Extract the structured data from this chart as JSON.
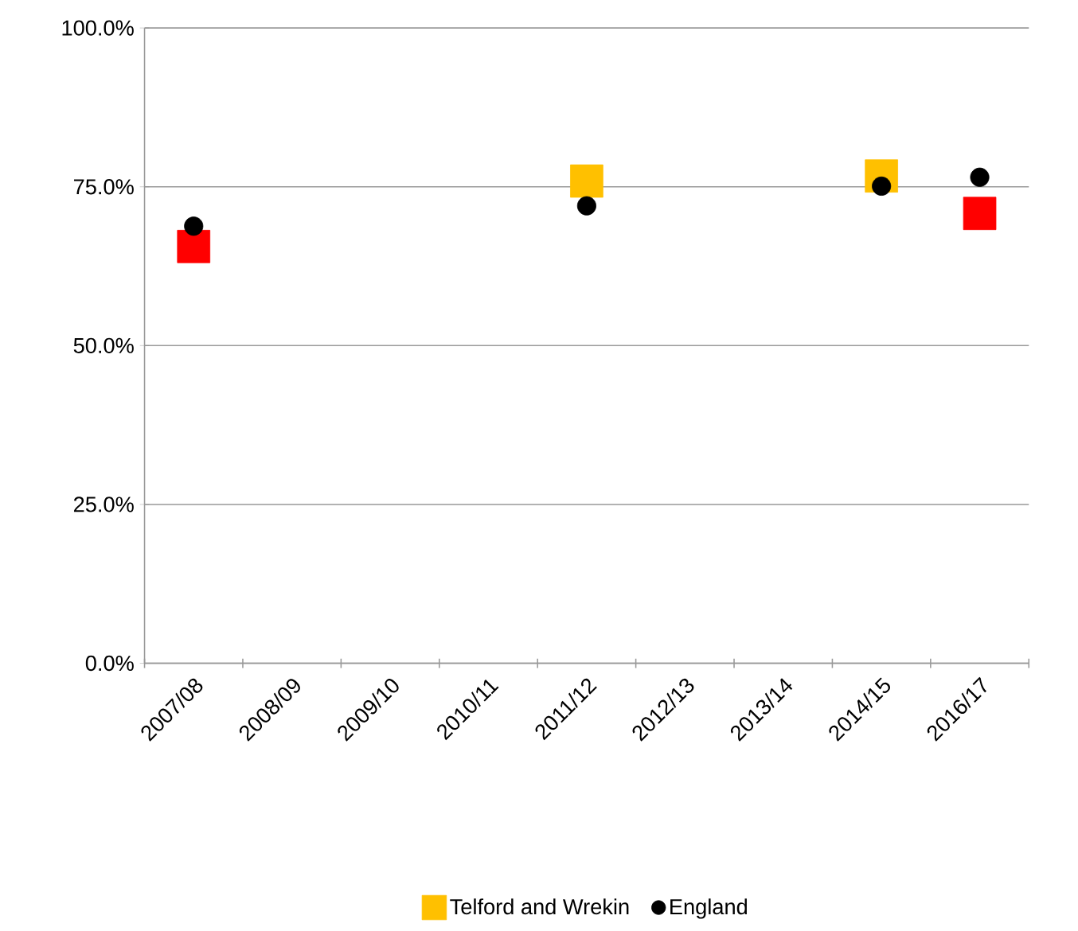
{
  "chart_data": {
    "type": "scatter",
    "categories": [
      "2007/08",
      "2008/09",
      "2009/10",
      "2010/11",
      "2011/12",
      "2012/13",
      "2013/14",
      "2014/15",
      "2016/17"
    ],
    "series": [
      {
        "name": "Telford and Wrekin",
        "color": "#ffc000",
        "colors": [
          "#ff0000",
          null,
          null,
          null,
          "#ffc000",
          null,
          null,
          "#ffc000",
          "#ff0000"
        ],
        "marker": "square",
        "values": [
          65.6,
          null,
          null,
          null,
          75.9,
          null,
          null,
          76.7,
          70.8
        ]
      },
      {
        "name": "England",
        "color": "#000000",
        "marker": "circle",
        "values": [
          68.8,
          null,
          null,
          null,
          72.0,
          null,
          null,
          75.1,
          76.5
        ]
      }
    ],
    "ylim": [
      0,
      100
    ],
    "yticks": [
      {
        "value": 0,
        "label": "0.0%"
      },
      {
        "value": 25,
        "label": "25.0%"
      },
      {
        "value": 50,
        "label": "50.0%"
      },
      {
        "value": 75,
        "label": "75.0%"
      },
      {
        "value": 100,
        "label": "100.0%"
      }
    ],
    "grid": "y",
    "legend": "bottom"
  }
}
